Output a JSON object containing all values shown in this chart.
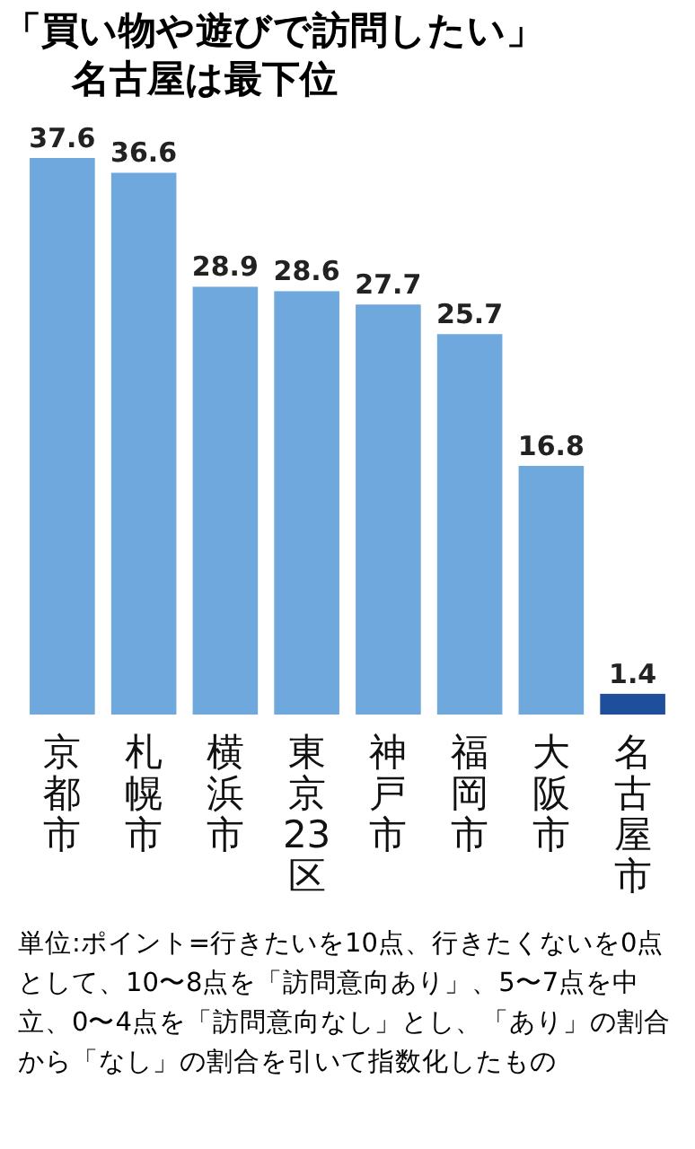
{
  "chart_data": {
    "type": "bar",
    "title": "「買い物や遊びで訪問したい」",
    "subtitle": "名古屋は最下位",
    "categories": [
      "京都市",
      "札幌市",
      "横浜市",
      "東京23区",
      "神戸市",
      "福岡市",
      "大阪市",
      "名古屋市"
    ],
    "values": [
      37.6,
      36.6,
      28.9,
      28.6,
      27.7,
      25.7,
      16.8,
      1.4
    ],
    "colors": [
      "#6fa8dc",
      "#6fa8dc",
      "#6fa8dc",
      "#6fa8dc",
      "#6fa8dc",
      "#6fa8dc",
      "#6fa8dc",
      "#1f4e9c"
    ],
    "data_labels": true,
    "annotations": [
      "単位:ポイント=行きたいを10点、行きたくないを0点として、10〜8点を「訪問意向あり」、5〜7点を中立、0〜4点を「訪問意向なし」とし、「あり」の割合から「なし」の割合を引いて指数化したもの"
    ]
  }
}
